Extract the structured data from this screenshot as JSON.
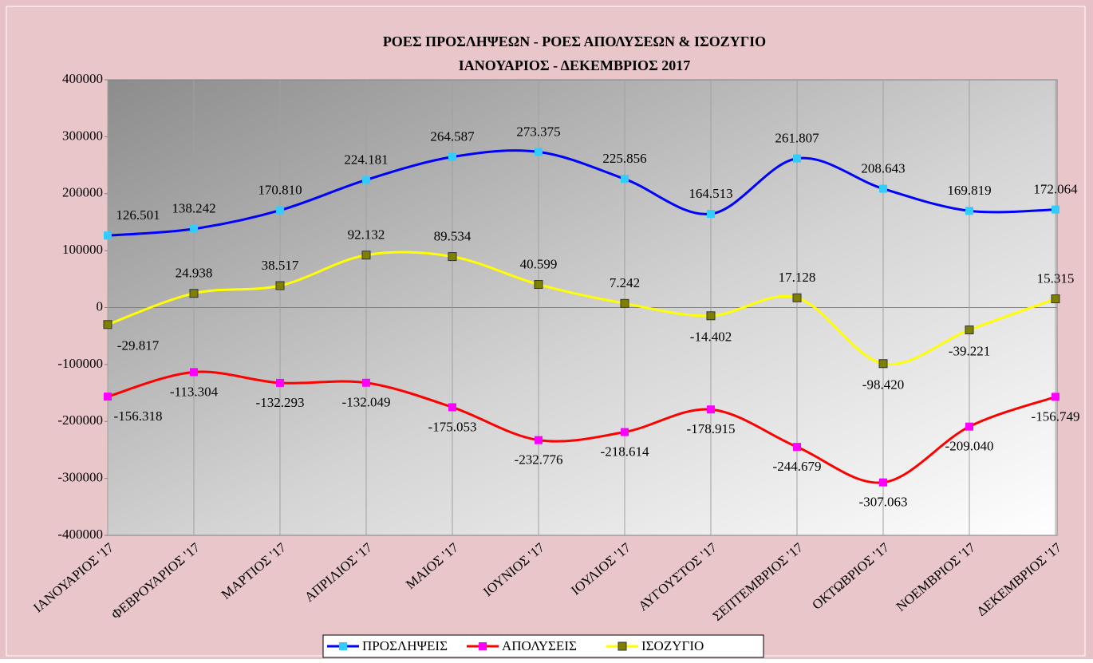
{
  "chart_data": {
    "type": "line",
    "title": "ΡΟΕΣ ΠΡΟΣΛΗΨΕΩΝ -  ΡΟΕΣ ΑΠΟΛΥΣΕΩΝ  & ΙΣΟΖΥΓΙΟ",
    "subtitle": "ΙΑΝΟΥΑΡΙΟΣ -  ΔΕΚΕΜΒΡΙΟΣ  2017",
    "categories": [
      "ΙΑΝΟΥΑΡΙΟΣ '17",
      "ΦΕΒΡΟΥΑΡΙΟΣ '17",
      "ΜΑΡΤΙΟΣ '17",
      "ΑΠΡΙΛΙΟΣ '17",
      "ΜΑΙΟΣ '17",
      "ΙΟΥΝΙΟΣ '17",
      "ΙΟΥΛΙΟΣ '17",
      "ΑΥΓΟΥΣΤΟΣ '17",
      "ΣΕΠΤΕΜΒΡΙΟΣ '17",
      "ΟΚΤΩΒΡΙΟΣ '17",
      "ΝΟΕΜΒΡΙΟΣ '17",
      "ΔΕΚΕΜΒΡΙΟΣ '17"
    ],
    "series": [
      {
        "name": "ΠΡΟΣΛΗΨΕΙΣ",
        "color": "#0000ff",
        "marker_color": "#33ccff",
        "values": [
          126501,
          138242,
          170810,
          224181,
          264587,
          273375,
          225856,
          164513,
          261807,
          208643,
          169819,
          172064
        ],
        "value_labels": [
          "126.501",
          "138.242",
          "170.810",
          "224.181",
          "264.587",
          "273.375",
          "225.856",
          "164.513",
          "261.807",
          "208.643",
          "169.819",
          "172.064"
        ]
      },
      {
        "name": "ΑΠΟΛΥΣΕΙΣ",
        "color": "#ff0000",
        "marker_color": "#ff00ff",
        "values": [
          -156318,
          -113304,
          -132293,
          -132049,
          -175053,
          -232776,
          -218614,
          -178915,
          -244679,
          -307063,
          -209040,
          -156749
        ],
        "value_labels": [
          "-156.318",
          "-113.304",
          "-132.293",
          "-132.049",
          "-175.053",
          "-232.776",
          "-218.614",
          "-178.915",
          "-244.679",
          "-307.063",
          "-209.040",
          "-156.749"
        ]
      },
      {
        "name": "ΙΣΟΖΥΓΙΟ",
        "color": "#ffff00",
        "marker_color": "#808000",
        "values": [
          -29817,
          24938,
          38517,
          92132,
          89534,
          40599,
          7242,
          -14402,
          17128,
          -98420,
          -39221,
          15315
        ],
        "value_labels": [
          "-29.817",
          "24.938",
          "38.517",
          "92.132",
          "89.534",
          "40.599",
          "7.242",
          "-14.402",
          "17.128",
          "-98.420",
          "-39.221",
          "15.315"
        ]
      }
    ],
    "ylim": [
      -400000,
      400000
    ],
    "yticks": [
      -400000,
      -300000,
      -200000,
      -100000,
      0,
      100000,
      200000,
      300000,
      400000
    ],
    "legend": "bottom"
  }
}
